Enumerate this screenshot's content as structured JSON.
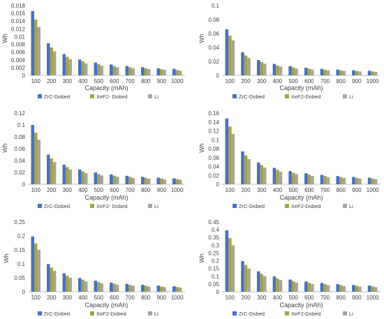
{
  "colors": {
    "ZrC-Dobed": "#4472C4",
    "XeF2-Dobed": "#A5A53F",
    "Li": "#A5A5A5",
    "axis": "#BFBFBF",
    "text": "#404040"
  },
  "chart_data": [
    {
      "type": "bar",
      "categories": [
        "100",
        "200",
        "300",
        "400",
        "500",
        "600",
        "700",
        "800",
        "900",
        "1000"
      ],
      "xlabel": "Capacity (mAh)",
      "ylabel": "Wh",
      "ylim": [
        0,
        0.018
      ],
      "yticks": [
        "0",
        "0.002",
        "0.004",
        "0.006",
        "0.008",
        "0.01",
        "0.012",
        "0.014",
        "0.016",
        "0.018"
      ],
      "legend_position": "bottom",
      "series": [
        {
          "name": "ZrC-Dobed",
          "values": [
            0.0166,
            0.0083,
            0.0055,
            0.0041,
            0.0033,
            0.0028,
            0.0024,
            0.0021,
            0.0018,
            0.0017
          ]
        },
        {
          "name": "XeF2- Dobed",
          "values": [
            0.0144,
            0.0072,
            0.0048,
            0.0036,
            0.0029,
            0.0024,
            0.0021,
            0.0018,
            0.0016,
            0.0014
          ]
        },
        {
          "name": "Li",
          "values": [
            0.0125,
            0.0062,
            0.0042,
            0.0031,
            0.0025,
            0.0021,
            0.0018,
            0.0016,
            0.0014,
            0.0012
          ]
        }
      ]
    },
    {
      "type": "bar",
      "categories": [
        "100",
        "200",
        "300",
        "400",
        "500",
        "600",
        "700",
        "800",
        "900",
        "1000"
      ],
      "xlabel": "Capacity (mAh)",
      "ylabel": "Wh",
      "ylim": [
        0,
        0.1
      ],
      "yticks": [
        "0",
        "0.02",
        "0.04",
        "0.06",
        "0.08",
        "0.1"
      ],
      "legend_position": "bottom",
      "series": [
        {
          "name": "ZrC-Dobed",
          "values": [
            0.066,
            0.033,
            0.022,
            0.0165,
            0.0132,
            0.011,
            0.0094,
            0.0083,
            0.0073,
            0.0066
          ]
        },
        {
          "name": "XeF2-Dobed",
          "values": [
            0.057,
            0.0285,
            0.019,
            0.0143,
            0.0114,
            0.0095,
            0.0081,
            0.0071,
            0.0063,
            0.0057
          ]
        },
        {
          "name": "Li",
          "values": [
            0.05,
            0.025,
            0.0167,
            0.0125,
            0.01,
            0.0083,
            0.0071,
            0.0063,
            0.0056,
            0.005
          ]
        }
      ]
    },
    {
      "type": "bar",
      "categories": [
        "100",
        "200",
        "300",
        "400",
        "500",
        "600",
        "700",
        "800",
        "900",
        "1000"
      ],
      "xlabel": "Capacity (mAh)",
      "ylabel": "Wh",
      "ylim": [
        0,
        0.12
      ],
      "yticks": [
        "0",
        "0.02",
        "0.04",
        "0.06",
        "0.08",
        "0.1",
        "0.12"
      ],
      "legend_position": "bottom",
      "series": [
        {
          "name": "ZrC-Dobed",
          "values": [
            0.1,
            0.05,
            0.033,
            0.025,
            0.02,
            0.0167,
            0.0143,
            0.0125,
            0.0111,
            0.01
          ]
        },
        {
          "name": "XeF2- Dobed",
          "values": [
            0.087,
            0.0435,
            0.029,
            0.0218,
            0.0174,
            0.0145,
            0.0124,
            0.0109,
            0.0097,
            0.0087
          ]
        },
        {
          "name": "Li",
          "values": [
            0.075,
            0.0375,
            0.025,
            0.0188,
            0.015,
            0.0125,
            0.0107,
            0.0094,
            0.0083,
            0.0075
          ]
        }
      ]
    },
    {
      "type": "bar",
      "categories": [
        "100",
        "200",
        "300",
        "400",
        "500",
        "600",
        "700",
        "800",
        "900",
        "1000"
      ],
      "xlabel": "Capacity (mAh)",
      "ylabel": "Wh",
      "ylim": [
        0,
        0.16
      ],
      "yticks": [
        "0",
        "0.02",
        "0.04",
        "0.06",
        "0.08",
        "0.1",
        "0.12",
        "0.14",
        "0.16"
      ],
      "legend_position": "bottom",
      "series": [
        {
          "name": "ZrC-Dobed",
          "values": [
            0.148,
            0.074,
            0.049,
            0.037,
            0.0296,
            0.0247,
            0.0211,
            0.0185,
            0.0164,
            0.0148
          ]
        },
        {
          "name": "XeF2-Dobed",
          "values": [
            0.13,
            0.065,
            0.0433,
            0.0325,
            0.026,
            0.0217,
            0.0186,
            0.0163,
            0.0144,
            0.013
          ]
        },
        {
          "name": "Li",
          "values": [
            0.113,
            0.0565,
            0.0377,
            0.0283,
            0.0226,
            0.0188,
            0.0161,
            0.0141,
            0.0126,
            0.0113
          ]
        }
      ]
    },
    {
      "type": "bar",
      "categories": [
        "100",
        "200",
        "300",
        "400",
        "500",
        "600",
        "700",
        "800",
        "900",
        "1000"
      ],
      "xlabel": "Capacity (mAh)",
      "ylabel": "Wh",
      "ylim": [
        0,
        0.25
      ],
      "yticks": [
        "0",
        "0.05",
        "0.1",
        "0.15",
        "0.2",
        "0.25"
      ],
      "legend_position": "bottom",
      "series": [
        {
          "name": "ZrC-Dobed",
          "values": [
            0.198,
            0.099,
            0.066,
            0.0495,
            0.0396,
            0.033,
            0.0283,
            0.0248,
            0.022,
            0.0198
          ]
        },
        {
          "name": "XeF2-Dobed",
          "values": [
            0.173,
            0.0865,
            0.0577,
            0.0433,
            0.0346,
            0.0288,
            0.0247,
            0.0216,
            0.0192,
            0.0173
          ]
        },
        {
          "name": "Li",
          "values": [
            0.15,
            0.075,
            0.05,
            0.0375,
            0.03,
            0.025,
            0.0214,
            0.0188,
            0.0167,
            0.015
          ]
        }
      ]
    },
    {
      "type": "bar",
      "categories": [
        "100",
        "200",
        "300",
        "400",
        "500",
        "600",
        "700",
        "800",
        "900",
        "1000"
      ],
      "xlabel": "Capacity (mAh)",
      "ylabel": "Wh",
      "ylim": [
        0,
        0.45
      ],
      "yticks": [
        "0",
        "0.05",
        "0.1",
        "0.15",
        "0.2",
        "0.25",
        "0.3",
        "0.35",
        "0.4",
        "0.45"
      ],
      "legend_position": "bottom",
      "series": [
        {
          "name": "ZrC-Dobed",
          "values": [
            0.396,
            0.198,
            0.132,
            0.099,
            0.0792,
            0.066,
            0.0566,
            0.0495,
            0.044,
            0.0396
          ]
        },
        {
          "name": "XeF2-Dobed",
          "values": [
            0.346,
            0.173,
            0.1153,
            0.0865,
            0.0692,
            0.0577,
            0.0494,
            0.0433,
            0.0384,
            0.0346
          ]
        },
        {
          "name": "Li",
          "values": [
            0.3,
            0.15,
            0.1,
            0.075,
            0.06,
            0.05,
            0.0429,
            0.0375,
            0.0333,
            0.03
          ]
        }
      ]
    }
  ]
}
